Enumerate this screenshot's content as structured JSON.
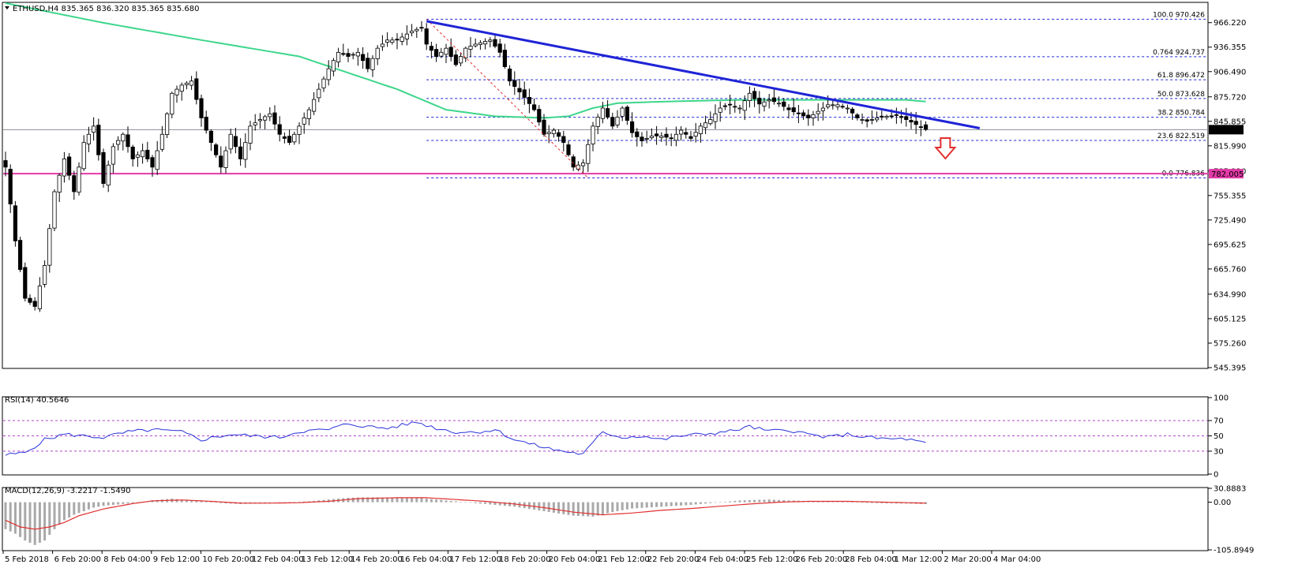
{
  "chart_data": [
    {
      "type": "candlestick",
      "symbol_header": "ETHUSD,H4  835.365 836.320 835.365 835.680",
      "symbol": "ETHUSD",
      "timeframe": "H4",
      "ohlc_last": [
        835.365,
        836.32,
        835.365,
        835.68
      ],
      "current_price": 835.68,
      "current_price_label": "835.680",
      "ylim": [
        545.395,
        990
      ],
      "ytick_values": [
        966.22,
        936.355,
        906.49,
        875.72,
        845.855,
        815.99,
        785.22,
        755.355,
        725.49,
        695.625,
        665.76,
        634.99,
        605.125,
        575.26,
        545.395
      ],
      "ytick_labels": [
        "966.220",
        "936.355",
        "906.490",
        "875.720",
        "845.855",
        "815.990",
        "785.220",
        "755.355",
        "725.490",
        "695.625",
        "665.760",
        "634.990",
        "605.125",
        "575.260",
        "545.395"
      ],
      "xtick_labels": [
        "5 Feb 2018",
        "6 Feb 20:00",
        "8 Feb 04:00",
        "9 Feb 12:00",
        "10 Feb 20:00",
        "12 Feb 04:00",
        "13 Feb 12:00",
        "14 Feb 20:00",
        "16 Feb 04:00",
        "17 Feb 12:00",
        "18 Feb 20:00",
        "20 Feb 04:00",
        "21 Feb 12:00",
        "22 Feb 20:00",
        "24 Feb 04:00",
        "25 Feb 12:00",
        "26 Feb 20:00",
        "28 Feb 04:00",
        "1 Mar 12:00",
        "2 Mar 20:00",
        "4 Mar 04:00"
      ],
      "bar_count": 205,
      "candle_colors": {
        "up": "#ffffff",
        "down": "#000000",
        "wick": "#000000"
      },
      "price_anchors": [
        [
          0,
          790
        ],
        [
          2,
          700
        ],
        [
          4,
          630
        ],
        [
          6,
          620
        ],
        [
          8,
          670
        ],
        [
          10,
          760
        ],
        [
          12,
          800
        ],
        [
          14,
          760
        ],
        [
          16,
          820
        ],
        [
          18,
          840
        ],
        [
          20,
          770
        ],
        [
          22,
          815
        ],
        [
          24,
          830
        ],
        [
          26,
          800
        ],
        [
          28,
          810
        ],
        [
          30,
          790
        ],
        [
          32,
          830
        ],
        [
          34,
          880
        ],
        [
          36,
          890
        ],
        [
          38,
          895
        ],
        [
          40,
          850
        ],
        [
          42,
          820
        ],
        [
          44,
          790
        ],
        [
          46,
          830
        ],
        [
          48,
          800
        ],
        [
          50,
          840
        ],
        [
          52,
          848
        ],
        [
          54,
          855
        ],
        [
          56,
          830
        ],
        [
          58,
          820
        ],
        [
          60,
          840
        ],
        [
          62,
          860
        ],
        [
          66,
          910
        ],
        [
          68,
          930
        ],
        [
          70,
          925
        ],
        [
          72,
          930
        ],
        [
          74,
          910
        ],
        [
          76,
          935
        ],
        [
          78,
          945
        ],
        [
          80,
          945
        ],
        [
          83,
          956
        ],
        [
          85,
          960
        ],
        [
          86,
          940
        ],
        [
          88,
          925
        ],
        [
          90,
          935
        ],
        [
          92,
          915
        ],
        [
          94,
          935
        ],
        [
          96,
          940
        ],
        [
          99,
          945
        ],
        [
          101,
          930
        ],
        [
          103,
          895
        ],
        [
          106,
          875
        ],
        [
          108,
          860
        ],
        [
          110,
          830
        ],
        [
          112,
          835
        ],
        [
          114,
          820
        ],
        [
          116,
          790
        ],
        [
          118,
          795
        ],
        [
          120,
          840
        ],
        [
          122,
          862
        ],
        [
          124,
          840
        ],
        [
          126,
          862
        ],
        [
          128,
          832
        ],
        [
          130,
          822
        ],
        [
          132,
          828
        ],
        [
          134,
          828
        ],
        [
          136,
          825
        ],
        [
          138,
          835
        ],
        [
          140,
          825
        ],
        [
          142,
          840
        ],
        [
          144,
          848
        ],
        [
          146,
          862
        ],
        [
          148,
          866
        ],
        [
          150,
          862
        ],
        [
          152,
          880
        ],
        [
          154,
          867
        ],
        [
          156,
          872
        ],
        [
          158,
          868
        ],
        [
          160,
          860
        ],
        [
          162,
          855
        ],
        [
          164,
          850
        ],
        [
          166,
          858
        ],
        [
          168,
          866
        ],
        [
          170,
          866
        ],
        [
          172,
          862
        ],
        [
          174,
          850
        ],
        [
          176,
          846
        ],
        [
          178,
          850
        ],
        [
          180,
          852
        ],
        [
          182,
          853
        ],
        [
          184,
          848
        ],
        [
          186,
          842
        ],
        [
          188,
          836
        ]
      ],
      "series": [
        {
          "name": "",
          "kind": "moving-average",
          "color": "#3dd68c",
          "anchors": [
            [
              0,
              990
            ],
            [
              20,
              966
            ],
            [
              40,
              945
            ],
            [
              60,
              925
            ],
            [
              70,
              905
            ],
            [
              80,
              885
            ],
            [
              90,
              860
            ],
            [
              100,
              852
            ],
            [
              110,
              850
            ],
            [
              115,
              852
            ],
            [
              120,
              862
            ],
            [
              125,
              868
            ],
            [
              135,
              870
            ],
            [
              150,
              872
            ],
            [
              165,
              872
            ],
            [
              175,
              872
            ],
            [
              184,
              872
            ],
            [
              188,
              870
            ]
          ]
        }
      ],
      "trend_lines": [
        {
          "name": "",
          "color": "#1f24d6",
          "from": {
            "bar": 86,
            "price": 968
          },
          "to": {
            "bar": 199,
            "price": 837.5
          }
        }
      ],
      "swing_line": {
        "color": "#e0302f",
        "from": {
          "bar": 86,
          "price": 970.426
        },
        "to": {
          "bar": 119,
          "price": 776.836
        }
      },
      "horizontal_line": {
        "price": 782.005,
        "label": "782.005",
        "color": "#e23aa6"
      },
      "current_line_color": "#8a8f96",
      "fibonacci": {
        "color": "#1f24d6",
        "start_bar": 86,
        "levels": [
          {
            "price": 970.426,
            "label": "100.0  970.426"
          },
          {
            "price": 924.737,
            "label": "0.764  924.737"
          },
          {
            "price": 896.472,
            "label": "61.8  896.472"
          },
          {
            "price": 873.628,
            "label": "50.0  873.628"
          },
          {
            "price": 850.784,
            "label": "38.2  850.784"
          },
          {
            "price": 822.519,
            "label": "23.6  822.519"
          },
          {
            "price": 776.836,
            "label": "0.0  776.836"
          }
        ]
      },
      "arrow": {
        "direction": "down",
        "color": "#e0302f",
        "bar": 192,
        "price": 812
      }
    },
    {
      "type": "line",
      "indicator_label": "RSI(14) 40.5646",
      "ylim": [
        0,
        100
      ],
      "ytick_labels": [
        "100",
        "70",
        "50",
        "30",
        "0"
      ],
      "ytick_values": [
        100,
        70,
        50,
        30,
        0
      ],
      "levels": [
        70,
        50,
        30
      ],
      "level_color": "#b046c8",
      "series": [
        {
          "name": "",
          "color": "#2932d9",
          "anchors": [
            [
              0,
              25
            ],
            [
              4,
              28
            ],
            [
              8,
              45
            ],
            [
              12,
              52
            ],
            [
              20,
              48
            ],
            [
              25,
              55
            ],
            [
              30,
              58
            ],
            [
              36,
              55
            ],
            [
              40,
              45
            ],
            [
              46,
              52
            ],
            [
              50,
              50
            ],
            [
              56,
              48
            ],
            [
              60,
              56
            ],
            [
              66,
              58
            ],
            [
              70,
              66
            ],
            [
              74,
              62
            ],
            [
              78,
              60
            ],
            [
              84,
              68
            ],
            [
              88,
              60
            ],
            [
              92,
              55
            ],
            [
              96,
              55
            ],
            [
              100,
              58
            ],
            [
              104,
              45
            ],
            [
              108,
              38
            ],
            [
              112,
              32
            ],
            [
              116,
              28
            ],
            [
              118,
              26
            ],
            [
              122,
              55
            ],
            [
              126,
              48
            ],
            [
              130,
              50
            ],
            [
              134,
              45
            ],
            [
              138,
              50
            ],
            [
              142,
              52
            ],
            [
              148,
              56
            ],
            [
              152,
              62
            ],
            [
              156,
              56
            ],
            [
              160,
              58
            ],
            [
              164,
              52
            ],
            [
              168,
              48
            ],
            [
              172,
              52
            ],
            [
              176,
              48
            ],
            [
              180,
              46
            ],
            [
              184,
              46
            ],
            [
              188,
              40
            ]
          ]
        }
      ]
    },
    {
      "type": "bar",
      "indicator_label": "MACD(12,26,9) -3.2217 -1.5490",
      "ylim": [
        -105.8949,
        30.8883
      ],
      "ytick_labels": [
        "30.8883",
        "0.00",
        "-105.8949"
      ],
      "ytick_values": [
        30.8883,
        0,
        -105.8949
      ],
      "histogram_color": "#a9a9a9",
      "histogram_anchors": [
        [
          0,
          -60
        ],
        [
          2,
          -70
        ],
        [
          4,
          -85
        ],
        [
          6,
          -95
        ],
        [
          8,
          -85
        ],
        [
          10,
          -60
        ],
        [
          12,
          -40
        ],
        [
          14,
          -28
        ],
        [
          16,
          -20
        ],
        [
          18,
          -12
        ],
        [
          20,
          -8
        ],
        [
          24,
          -4
        ],
        [
          28,
          0
        ],
        [
          30,
          4
        ],
        [
          32,
          6
        ],
        [
          34,
          8
        ],
        [
          36,
          6
        ],
        [
          40,
          3
        ],
        [
          44,
          -2
        ],
        [
          48,
          -4
        ],
        [
          52,
          -2
        ],
        [
          58,
          0
        ],
        [
          62,
          2
        ],
        [
          66,
          6
        ],
        [
          70,
          10
        ],
        [
          74,
          11
        ],
        [
          80,
          10
        ],
        [
          84,
          10
        ],
        [
          88,
          6
        ],
        [
          94,
          0
        ],
        [
          100,
          -6
        ],
        [
          104,
          -10
        ],
        [
          110,
          -20
        ],
        [
          116,
          -30
        ],
        [
          120,
          -32
        ],
        [
          124,
          -22
        ],
        [
          128,
          -14
        ],
        [
          134,
          -10
        ],
        [
          140,
          -6
        ],
        [
          144,
          -2
        ],
        [
          150,
          4
        ],
        [
          156,
          6
        ],
        [
          160,
          4
        ],
        [
          166,
          2
        ],
        [
          172,
          0
        ],
        [
          178,
          -2
        ],
        [
          184,
          -3
        ],
        [
          188,
          -4
        ]
      ],
      "signal": {
        "name": "",
        "color": "#e0302f",
        "anchors": [
          [
            0,
            -40
          ],
          [
            3,
            -55
          ],
          [
            6,
            -60
          ],
          [
            9,
            -55
          ],
          [
            12,
            -45
          ],
          [
            15,
            -30
          ],
          [
            20,
            -15
          ],
          [
            26,
            -3
          ],
          [
            30,
            3
          ],
          [
            36,
            5
          ],
          [
            42,
            2
          ],
          [
            48,
            -2
          ],
          [
            54,
            -2
          ],
          [
            60,
            -1
          ],
          [
            66,
            2
          ],
          [
            72,
            8
          ],
          [
            80,
            10
          ],
          [
            86,
            10
          ],
          [
            92,
            6
          ],
          [
            98,
            2
          ],
          [
            104,
            -4
          ],
          [
            110,
            -12
          ],
          [
            116,
            -22
          ],
          [
            122,
            -28
          ],
          [
            128,
            -24
          ],
          [
            134,
            -18
          ],
          [
            140,
            -14
          ],
          [
            146,
            -9
          ],
          [
            152,
            -4
          ],
          [
            158,
            0
          ],
          [
            164,
            2
          ],
          [
            172,
            2
          ],
          [
            180,
            0
          ],
          [
            188,
            -2
          ]
        ]
      }
    }
  ]
}
